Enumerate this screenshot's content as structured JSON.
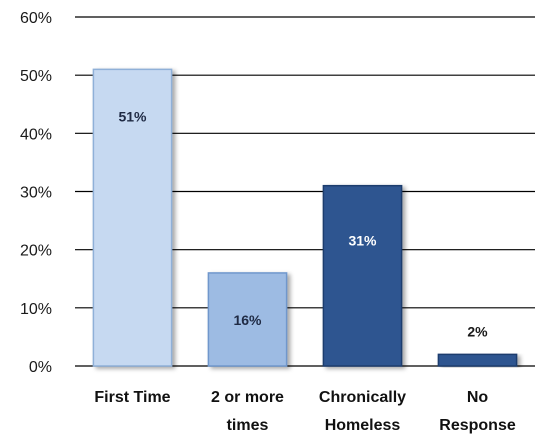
{
  "chart_data": {
    "type": "bar",
    "categories": [
      "First Time",
      "2 or more times",
      "Chronically Homeless",
      "No Response"
    ],
    "category_lines": [
      [
        "First Time"
      ],
      [
        "2 or more",
        "times"
      ],
      [
        "Chronically",
        "Homeless"
      ],
      [
        "No",
        "Response"
      ]
    ],
    "values": [
      51,
      16,
      31,
      2
    ],
    "data_labels": [
      "51%",
      "16%",
      "31%",
      "2%"
    ],
    "y_ticks": [
      "0%",
      "10%",
      "20%",
      "30%",
      "40%",
      "50%",
      "60%"
    ],
    "ylim": [
      0,
      60
    ],
    "grid": true,
    "legend": "none",
    "bar_colors": [
      "#c6d9f1",
      "#9dbbe3",
      "#2f5590",
      "#2f5590"
    ],
    "bar_edge_colors": [
      "#8fb0d8",
      "#6f97cc",
      "#1f3d6e",
      "#1f3d6e"
    ],
    "label_colors": [
      "#1f2a44",
      "#1f2a44",
      "#ffffff",
      "#1a1a1a"
    ],
    "gridline_color": "#000000"
  }
}
